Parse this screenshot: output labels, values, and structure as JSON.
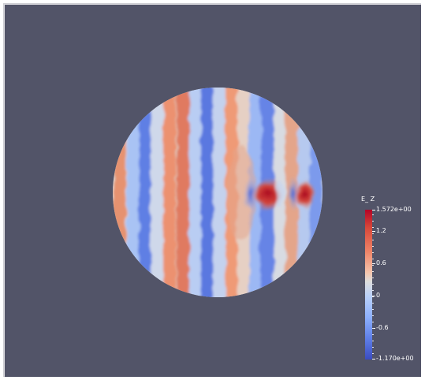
{
  "legend": {
    "title": "E_ Z",
    "max_label": "1.572e+00",
    "min_label": "-1.170e+00",
    "ticks": [
      "1.2",
      "0.6",
      "0",
      "-0.6"
    ],
    "colormap": "cool-to-warm"
  },
  "colors": {
    "background": "#525468",
    "field_high": "#b40426",
    "field_mid": "#dddddd",
    "field_low": "#3b4cc0"
  }
}
